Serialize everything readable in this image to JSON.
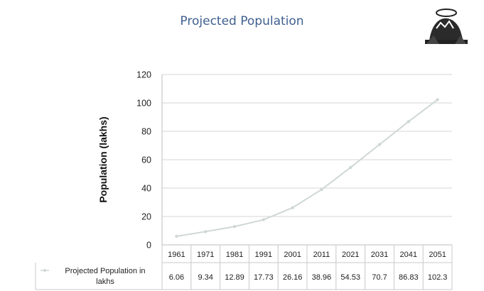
{
  "slide": {
    "title": "Projected Population",
    "logo_icon": "emblem-logo-icon"
  },
  "chart_data": {
    "type": "line",
    "title": "Projected Population",
    "ylabel": "Population (lakhs)",
    "xlabel": "",
    "categories": [
      "1961",
      "1971",
      "1981",
      "1991",
      "2001",
      "2011",
      "2021",
      "2031",
      "2041",
      "2051"
    ],
    "series": [
      {
        "name": "Projected Population in lakhs",
        "values": [
          6.06,
          9.34,
          12.89,
          17.73,
          26.16,
          38.96,
          54.53,
          70.7,
          86.83,
          102.3
        ],
        "labels": [
          "6.06",
          "9.34",
          "12.89",
          "17.73",
          "26.16",
          "38.96",
          "54.53",
          "70.7",
          "86.83",
          "102.3"
        ],
        "color": "#cfd8d4"
      }
    ],
    "ylim": [
      0,
      120
    ],
    "yticks": [
      0,
      20,
      40,
      60,
      80,
      100,
      120
    ],
    "grid": true,
    "data_table": true,
    "legend": "in-table"
  }
}
